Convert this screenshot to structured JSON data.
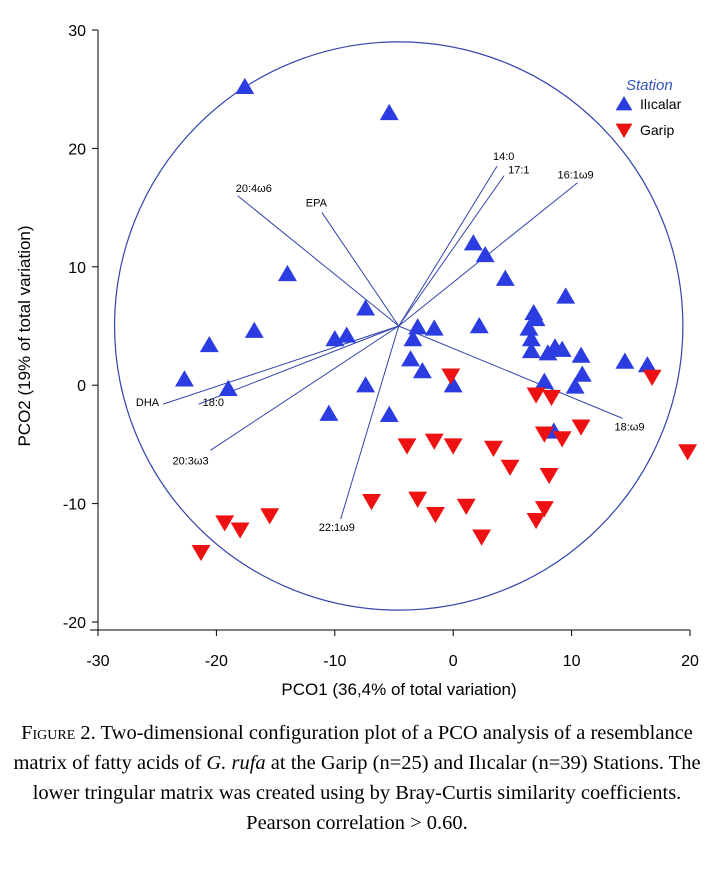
{
  "chart_data": {
    "type": "scatter",
    "xlabel": "PCO1 (36,4% of total variation)",
    "ylabel": "PCO2 (19% of total variation)",
    "xlim": [
      -30,
      20
    ],
    "ylim": [
      -20,
      30
    ],
    "xticks": [
      "-30",
      "-20",
      "-10",
      "0",
      "10",
      "20"
    ],
    "yticks": [
      "-20",
      "-10",
      "0",
      "10",
      "20",
      "30"
    ],
    "legend": {
      "title": "Station",
      "placement": "top-right"
    },
    "series": [
      {
        "name": "Ilıcalar",
        "marker": "triangle-up",
        "color": "#2b3de0",
        "points": [
          [
            -17.6,
            25.2
          ],
          [
            -5.4,
            23.0
          ],
          [
            1.7,
            12.0
          ],
          [
            2.7,
            11.0
          ],
          [
            4.4,
            9.0
          ],
          [
            -14.0,
            9.4
          ],
          [
            -16.8,
            4.6
          ],
          [
            -20.6,
            3.4
          ],
          [
            -22.7,
            0.5
          ],
          [
            -19.0,
            -0.3
          ],
          [
            -7.4,
            6.5
          ],
          [
            -9.0,
            4.2
          ],
          [
            -10.0,
            3.9
          ],
          [
            -3.0,
            4.9
          ],
          [
            -3.4,
            3.9
          ],
          [
            -1.6,
            4.8
          ],
          [
            2.2,
            5.0
          ],
          [
            -3.6,
            2.2
          ],
          [
            -2.6,
            1.2
          ],
          [
            0.0,
            0.0
          ],
          [
            -7.4,
            0.0
          ],
          [
            -10.5,
            -2.4
          ],
          [
            -5.4,
            -2.5
          ],
          [
            9.5,
            7.5
          ],
          [
            6.8,
            6.1
          ],
          [
            7.0,
            5.6
          ],
          [
            6.4,
            4.8
          ],
          [
            6.6,
            3.9
          ],
          [
            6.6,
            2.9
          ],
          [
            8.6,
            3.2
          ],
          [
            9.2,
            3.0
          ],
          [
            8.0,
            2.7
          ],
          [
            10.8,
            2.5
          ],
          [
            7.7,
            0.3
          ],
          [
            10.9,
            0.9
          ],
          [
            10.3,
            -0.1
          ],
          [
            14.5,
            2.0
          ],
          [
            16.4,
            1.7
          ],
          [
            8.5,
            -3.9
          ]
        ]
      },
      {
        "name": "Garip",
        "marker": "triangle-down",
        "color": "#ee1111",
        "points": [
          [
            -0.2,
            0.8
          ],
          [
            7.0,
            -0.8
          ],
          [
            8.3,
            -1.0
          ],
          [
            10.8,
            -3.5
          ],
          [
            7.7,
            -4.1
          ],
          [
            9.2,
            -4.5
          ],
          [
            -3.9,
            -5.1
          ],
          [
            -1.6,
            -4.7
          ],
          [
            0.0,
            -5.1
          ],
          [
            3.4,
            -5.3
          ],
          [
            4.8,
            -6.9
          ],
          [
            8.1,
            -7.6
          ],
          [
            -6.9,
            -9.8
          ],
          [
            -3.0,
            -9.6
          ],
          [
            1.1,
            -10.2
          ],
          [
            -1.5,
            -10.9
          ],
          [
            2.4,
            -12.8
          ],
          [
            7.7,
            -10.4
          ],
          [
            7.0,
            -11.4
          ],
          [
            -15.5,
            -11.0
          ],
          [
            -19.3,
            -11.6
          ],
          [
            -18.0,
            -12.2
          ],
          [
            -21.3,
            -14.1
          ],
          [
            16.8,
            0.7
          ],
          [
            19.8,
            -5.6
          ]
        ]
      }
    ],
    "vectors": [
      {
        "label": "14:0",
        "end": [
          3.7,
          18.5
        ]
      },
      {
        "label": "17:1",
        "end": [
          4.3,
          17.7
        ]
      },
      {
        "label": "16:1ω9",
        "end": [
          10.5,
          17.1
        ]
      },
      {
        "label": "EPA",
        "end": [
          -11.1,
          14.6
        ]
      },
      {
        "label": "20:4ω6",
        "end": [
          -18.2,
          16.0
        ]
      },
      {
        "label": "DHA",
        "end": [
          -24.5,
          -1.6
        ]
      },
      {
        "label": "18:0",
        "end": [
          -21.5,
          -1.6
        ]
      },
      {
        "label": "20:3ω3",
        "end": [
          -20.5,
          -5.5
        ]
      },
      {
        "label": "22:1ω9",
        "end": [
          -9.5,
          -11.3
        ]
      },
      {
        "label": "18:ω9",
        "end": [
          14.3,
          -2.8
        ]
      }
    ],
    "circle": {
      "center": [
        -4.6,
        5.0
      ],
      "radius": 24.0
    }
  },
  "caption": {
    "figure_label": "Figure",
    "figure_number": "2.",
    "text_before_species": "Two-dimensional configuration plot of a PCO analysis of a resemblance matrix of fatty acids of",
    "species": "G. rufa",
    "text_after_species": "at the Garip (n=25) and Ilıcalar (n=39) Stations. The lower tringular matrix was created using by Bray-Curtis similarity coefficients. Pearson correlation > 0.60."
  }
}
